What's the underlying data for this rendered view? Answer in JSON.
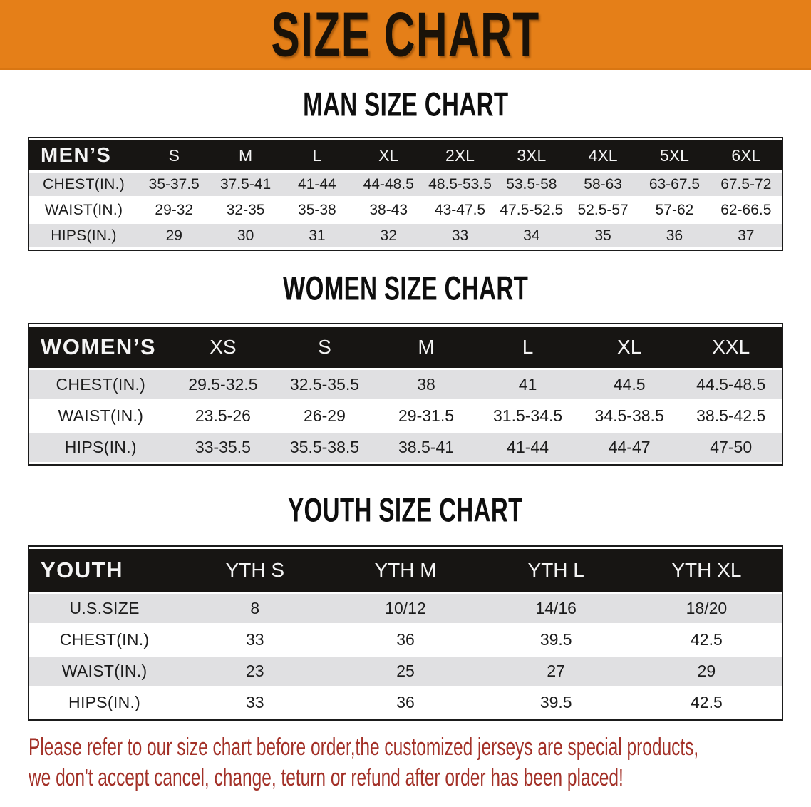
{
  "banner": {
    "title": "SIZE CHART"
  },
  "colors": {
    "banner_bg": "#E57F18",
    "table_header_bg": "#171513",
    "stripe_gray": "#E0E0E2",
    "disclaimer_red": "#A33128"
  },
  "sections": [
    {
      "heading": "MAN SIZE CHART",
      "table": {
        "corner_label": "MEN’S",
        "columns": [
          "S",
          "M",
          "L",
          "XL",
          "2XL",
          "3XL",
          "4XL",
          "5XL",
          "6XL"
        ],
        "rows": [
          {
            "label": "CHEST(IN.)",
            "values": [
              "35-37.5",
              "37.5-41",
              "41-44",
              "44-48.5",
              "48.5-53.5",
              "53.5-58",
              "58-63",
              "63-67.5",
              "67.5-72"
            ]
          },
          {
            "label": "WAIST(IN.)",
            "values": [
              "29-32",
              "32-35",
              "35-38",
              "38-43",
              "43-47.5",
              "47.5-52.5",
              "52.5-57",
              "57-62",
              "62-66.5"
            ]
          },
          {
            "label": "HIPS(IN.)",
            "values": [
              "29",
              "30",
              "31",
              "32",
              "33",
              "34",
              "35",
              "36",
              "37"
            ]
          }
        ]
      }
    },
    {
      "heading": "WOMEN SIZE CHART",
      "table": {
        "corner_label": "WOMEN’S",
        "columns": [
          "XS",
          "S",
          "M",
          "L",
          "XL",
          "XXL"
        ],
        "rows": [
          {
            "label": "CHEST(IN.)",
            "values": [
              "29.5-32.5",
              "32.5-35.5",
              "38",
              "41",
              "44.5",
              "44.5-48.5"
            ]
          },
          {
            "label": "WAIST(IN.)",
            "values": [
              "23.5-26",
              "26-29",
              "29-31.5",
              "31.5-34.5",
              "34.5-38.5",
              "38.5-42.5"
            ]
          },
          {
            "label": "HIPS(IN.)",
            "values": [
              "33-35.5",
              "35.5-38.5",
              "38.5-41",
              "41-44",
              "44-47",
              "47-50"
            ]
          }
        ]
      }
    },
    {
      "heading": "YOUTH SIZE CHART",
      "table": {
        "corner_label": "YOUTH",
        "columns": [
          "YTH S",
          "YTH M",
          "YTH L",
          "YTH XL"
        ],
        "rows": [
          {
            "label": "U.S.SIZE",
            "values": [
              "8",
              "10/12",
              "14/16",
              "18/20"
            ]
          },
          {
            "label": "CHEST(IN.)",
            "values": [
              "33",
              "36",
              "39.5",
              "42.5"
            ]
          },
          {
            "label": "WAIST(IN.)",
            "values": [
              "23",
              "25",
              "27",
              "29"
            ]
          },
          {
            "label": "HIPS(IN.)",
            "values": [
              "33",
              "36",
              "39.5",
              "42.5"
            ]
          }
        ]
      }
    }
  ],
  "disclaimer": {
    "lines": [
      "Please refer to our size chart before order,the customized jerseys are special products,",
      "we don't accept cancel, change, teturn or refund after order has been placed!"
    ]
  }
}
